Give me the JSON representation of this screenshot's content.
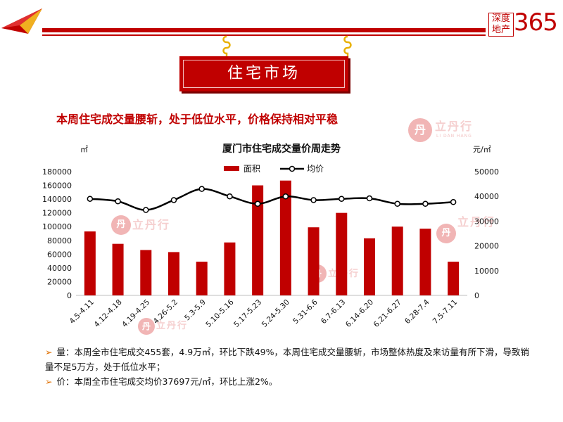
{
  "brand": {
    "box_line1": "深度",
    "box_line2": "地产",
    "number": "365"
  },
  "section_title": "住宅市场",
  "headline": "本周住宅成交量腰斩，处于低位水平，价格保持相对平稳",
  "watermark": {
    "main": "立丹行",
    "sub": "LI DAN HANG"
  },
  "chart_data": {
    "type": "bar",
    "title": "厦门市住宅成交量价周走势",
    "left_unit": "㎡",
    "right_unit": "元/㎡",
    "categories": [
      "4.5-4.11",
      "4.12-4.18",
      "4.19-4.25",
      "4.26-5.2",
      "5.3-5.9",
      "5.10-5.16",
      "5.17-5.23",
      "5.24-5.30",
      "5.31-6.6",
      "6.7-6.13",
      "6.14-6.20",
      "6.21-6.27",
      "6.28-7.4",
      "7.5-7.11"
    ],
    "series": [
      {
        "name": "面积",
        "type": "bar",
        "axis": "left",
        "color": "#c00000",
        "values": [
          93000,
          75000,
          66000,
          63000,
          49000,
          77000,
          160000,
          167000,
          99000,
          120000,
          83000,
          100000,
          97000,
          49000
        ]
      },
      {
        "name": "均价",
        "type": "line",
        "axis": "right",
        "color": "#000000",
        "values": [
          39000,
          38000,
          34500,
          38500,
          43000,
          40000,
          37000,
          40000,
          38500,
          39000,
          39200,
          37000,
          37000,
          37697
        ]
      }
    ],
    "left_ticks": [
      "0",
      "20000",
      "40000",
      "60000",
      "80000",
      "100000",
      "120000",
      "140000",
      "160000",
      "180000"
    ],
    "right_ticks": [
      "0",
      "10000",
      "20000",
      "30000",
      "40000",
      "50000"
    ],
    "ylim_left": [
      0,
      180000
    ],
    "ylim_right": [
      0,
      50000
    ],
    "legend": "top-center"
  },
  "bullets": [
    {
      "marker": "➢",
      "text": "量：本周全市住宅成交455套，4.9万㎡，环比下跌49%，本周住宅成交量腰斩，市场整体热度及来访量有所下滑，导致销量不足5万方，处于低位水平；"
    },
    {
      "marker": "➢",
      "text": "价：本周全市住宅成交均价37697元/㎡，环比上涨2%。"
    }
  ]
}
